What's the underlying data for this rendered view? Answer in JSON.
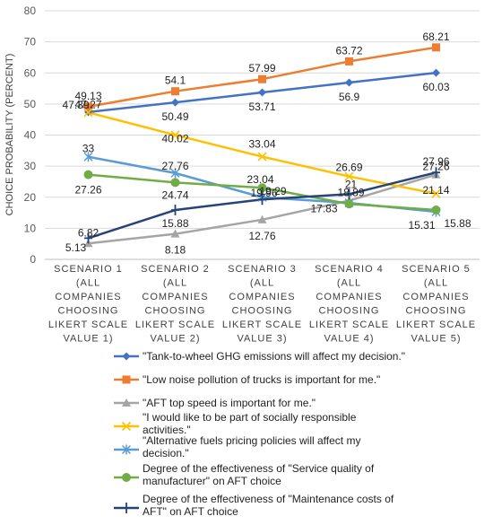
{
  "chart_data": {
    "type": "line",
    "title": "",
    "xlabel": "",
    "ylabel": "CHOICE PROBABILITY (PERCENT)",
    "ylim": [
      0,
      80
    ],
    "yticks": [
      0,
      10,
      20,
      30,
      40,
      50,
      60,
      70,
      80
    ],
    "grid": true,
    "legend_position": "bottom",
    "categories": [
      [
        "SCENARIO 1",
        "(ALL",
        "COMPANIES",
        "CHOOSING",
        "LIKERT SCALE",
        "VALUE 1)"
      ],
      [
        "SCENARIO 2",
        "(ALL",
        "COMPANIES",
        "CHOOSING",
        "LIKERT SCALE",
        "VALUE 2)"
      ],
      [
        "SCENARIO 3",
        "(ALL",
        "COMPANIES",
        "CHOOSING",
        "LIKERT SCALE",
        "VALUE 3)"
      ],
      [
        "SCENARIO 4",
        "(ALL",
        "COMPANIES",
        "CHOOSING",
        "LIKERT SCALE",
        "VALUE 4)"
      ],
      [
        "SCENARIO 5",
        "(ALL",
        "COMPANIES",
        "CHOOSING",
        "LIKERT SCALE",
        "VALUE 5)"
      ]
    ],
    "series": [
      {
        "name": "\"Tank-to-wheel GHG emissions will affect my decision.\"",
        "values": [
          47.39,
          50.49,
          53.71,
          56.9,
          60.03
        ],
        "labels": [
          "47.39",
          "50.49",
          "53.71",
          "56.9",
          "60.03"
        ],
        "color": "#4472C4",
        "marker": "diamond"
      },
      {
        "name": "\"Low noise pollution of trucks is important for me.\"",
        "values": [
          49.13,
          54.1,
          57.99,
          63.72,
          68.21
        ],
        "labels": [
          "49.13",
          "54.1",
          "57.99",
          "63.72",
          "68.21"
        ],
        "color": "#ED7D31",
        "marker": "square"
      },
      {
        "name": "\"AFT top speed is important for me.\"",
        "values": [
          5.13,
          8.18,
          12.76,
          18.89,
          27.26
        ],
        "labels": [
          "5.13",
          "8.18",
          "12.76",
          "18.89",
          "27.26"
        ],
        "color": "#A5A5A5",
        "marker": "triangle"
      },
      {
        "name": "\"I would like to be part of socially responsible activities.\"",
        "values": [
          47.27,
          40.02,
          33.04,
          26.69,
          21.14
        ],
        "labels": [
          "47.27",
          "40.02",
          "33.04",
          "26.69",
          "21.14"
        ],
        "color": "#FFC000",
        "marker": "x"
      },
      {
        "name": "\"Alternative fuels pricing policies will affect my decision.\"",
        "values": [
          33,
          27.76,
          19.96,
          18.17,
          15.31
        ],
        "labels": [
          "33",
          "27.76",
          "19.96",
          "",
          "15.31"
        ],
        "color": "#5B9BD5",
        "marker": "star"
      },
      {
        "name": "Degree of the effectiveness of \"Service quality of manufacturer\" on AFT choice",
        "values": [
          27.26,
          24.74,
          23.04,
          17.83,
          15.88
        ],
        "labels": [
          "27.26",
          "24.74",
          "23.04",
          "17.83",
          "15.88"
        ],
        "color": "#70AD47",
        "marker": "circle"
      },
      {
        "name": "Degree of the effectiveness of \"Maintenance costs of AFT\" on AFT choice",
        "values": [
          6.82,
          15.88,
          19.29,
          21,
          27.96
        ],
        "labels": [
          "6.82",
          "15.88",
          "19.29",
          "21",
          "27.96"
        ],
        "color": "#264478",
        "marker": "plus"
      }
    ]
  }
}
